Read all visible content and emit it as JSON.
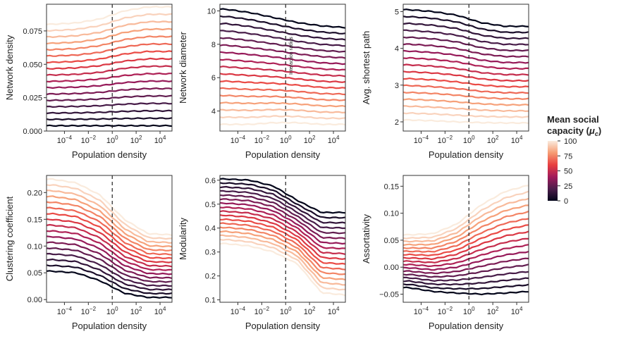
{
  "colormap": [
    "#03051a",
    "#4c1d4b",
    "#a11a5b",
    "#e83f3f",
    "#f69c73",
    "#faebdd"
  ],
  "legend": {
    "title_line1": "Mean social",
    "title_line2": "capacity (",
    "title_mu": "μ",
    "title_sub": "c",
    "title_close": ")",
    "ticks": [
      "100",
      "75",
      "50",
      "25",
      "0"
    ],
    "range": [
      0,
      100
    ]
  },
  "shared": {
    "xlabel": "Population density",
    "x_ticks": [
      -4,
      -2,
      0,
      2,
      4
    ],
    "x_tick_base": "10",
    "xlim_log10": [
      -5.5,
      5.0
    ],
    "vline_log10": 0,
    "capacity_levels": [
      0,
      6.25,
      12.5,
      18.75,
      25,
      31.25,
      37.5,
      43.75,
      50,
      56.25,
      62.5,
      68.75,
      75,
      81.25,
      87.5,
      93.75,
      100
    ]
  },
  "chart_data": [
    {
      "id": "network-density",
      "type": "line",
      "ylabel": "Network density",
      "ylim": [
        0,
        0.095
      ],
      "y_ticks": [
        0.0,
        0.025,
        0.05,
        0.075
      ],
      "y_tick_labels": [
        "0.000",
        "0.025",
        "0.050",
        "0.075"
      ],
      "series_low": [
        0.004,
        0.004,
        0.004,
        0.004,
        0.004,
        0.004
      ],
      "series_high": [
        0.08,
        0.081,
        0.084,
        0.09,
        0.093,
        0.093
      ],
      "annotation": ""
    },
    {
      "id": "network-diameter",
      "type": "line",
      "ylabel": "Network diameter",
      "ylim": [
        2.8,
        10.4
      ],
      "y_ticks": [
        4,
        6,
        8,
        10
      ],
      "y_tick_labels": [
        "4",
        "6",
        "8",
        "10"
      ],
      "series_low": [
        10.1,
        9.9,
        9.6,
        9.3,
        9.1,
        9.0
      ],
      "series_high": [
        3.2,
        3.2,
        3.3,
        3.3,
        3.2,
        3.2
      ],
      "annotation": "Interaction radius"
    },
    {
      "id": "avg-shortest-path",
      "type": "line",
      "ylabel": "Avg. shortest path",
      "ylim": [
        1.75,
        5.2
      ],
      "y_ticks": [
        2,
        3,
        4,
        5
      ],
      "y_tick_labels": [
        "2",
        "3",
        "4",
        "5"
      ],
      "series_low": [
        5.05,
        5.0,
        4.9,
        4.7,
        4.6,
        4.6
      ],
      "series_high": [
        2.05,
        2.03,
        2.0,
        1.98,
        1.97,
        1.97
      ],
      "annotation": ""
    },
    {
      "id": "clustering-coefficient",
      "type": "line",
      "ylabel": "Clustering coefficient",
      "ylim": [
        -0.005,
        0.232
      ],
      "y_ticks": [
        0.0,
        0.05,
        0.1,
        0.15,
        0.2
      ],
      "y_tick_labels": [
        "0.00",
        "0.05",
        "0.10",
        "0.15",
        "0.20"
      ],
      "series_low": [
        0.053,
        0.05,
        0.035,
        0.012,
        0.004,
        0.004
      ],
      "series_high": [
        0.225,
        0.218,
        0.195,
        0.15,
        0.123,
        0.121
      ],
      "annotation": ""
    },
    {
      "id": "modularity",
      "type": "line",
      "ylabel": "Modularity",
      "ylim": [
        0.09,
        0.62
      ],
      "y_ticks": [
        0.1,
        0.2,
        0.3,
        0.4,
        0.5,
        0.6
      ],
      "y_tick_labels": [
        "0.1",
        "0.2",
        "0.3",
        "0.4",
        "0.5",
        "0.6"
      ],
      "series_low": [
        0.605,
        0.6,
        0.575,
        0.515,
        0.465,
        0.465
      ],
      "series_high": [
        0.335,
        0.325,
        0.3,
        0.25,
        0.13,
        0.12
      ],
      "annotation": ""
    },
    {
      "id": "assortativity",
      "type": "line",
      "ylabel": "Assortativity",
      "ylim": [
        -0.065,
        0.17
      ],
      "y_ticks": [
        -0.05,
        0.0,
        0.05,
        0.1,
        0.15
      ],
      "y_tick_labels": [
        "−0.05",
        "0.00",
        "0.05",
        "0.10",
        "0.15"
      ],
      "series_low": [
        -0.038,
        -0.045,
        -0.048,
        -0.05,
        -0.048,
        -0.045
      ],
      "series_high": [
        0.06,
        0.062,
        0.08,
        0.115,
        0.14,
        0.152
      ],
      "annotation": ""
    }
  ]
}
